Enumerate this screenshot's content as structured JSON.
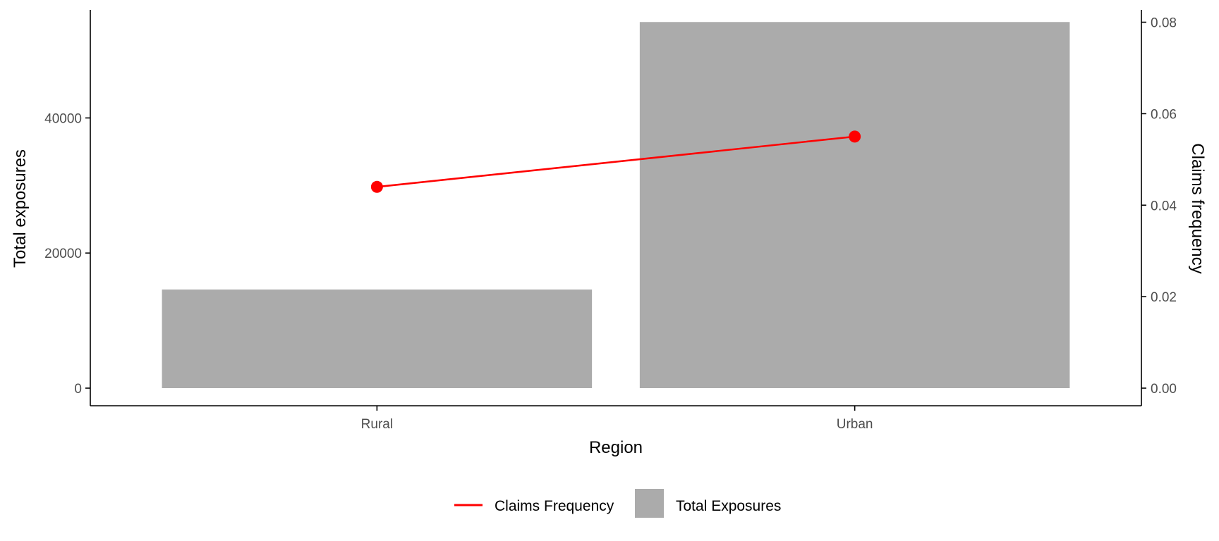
{
  "chart_data": {
    "type": "bar",
    "categories": [
      "Rural",
      "Urban"
    ],
    "series": [
      {
        "name": "Total Exposures",
        "kind": "bar",
        "axis": "left",
        "values": [
          14600,
          54200
        ],
        "color": "#ababab"
      },
      {
        "name": "Claims Frequency",
        "kind": "line",
        "axis": "right",
        "values": [
          0.044,
          0.055
        ],
        "color": "#ff0000"
      }
    ],
    "xlabel": "Region",
    "ylabel": "Total exposures",
    "y2label": "Claims frequency",
    "ylim": [
      0,
      56000
    ],
    "y2lim": [
      0,
      0.0827
    ],
    "yticks": [
      "0",
      "20000",
      "40000"
    ],
    "yticks_values": [
      0,
      20000,
      40000
    ],
    "y2ticks": [
      "0.00",
      "0.02",
      "0.04",
      "0.06",
      "0.08"
    ],
    "y2ticks_values": [
      0,
      0.02,
      0.04,
      0.06,
      0.08
    ],
    "grid": false,
    "legend_position": "bottom",
    "legend": [
      {
        "label": "Claims Frequency",
        "kind": "line",
        "color": "#ff0000"
      },
      {
        "label": "Total Exposures",
        "kind": "bar",
        "color": "#ababab"
      }
    ]
  }
}
